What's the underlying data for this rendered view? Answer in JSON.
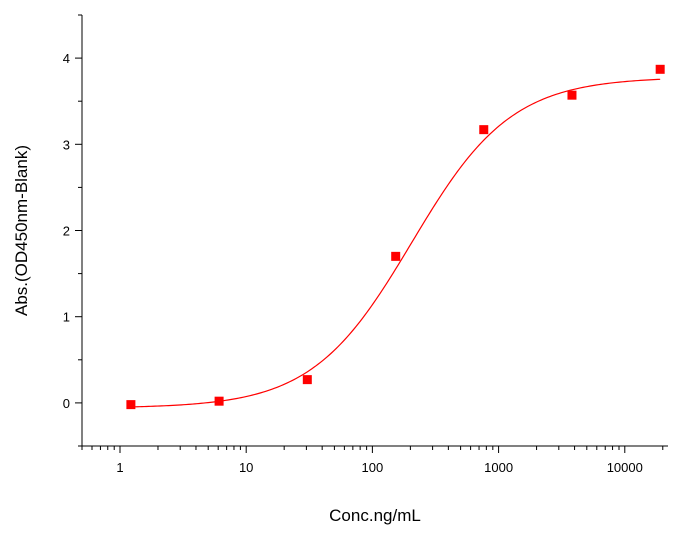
{
  "chart_data": {
    "type": "scatter",
    "title": "",
    "xlabel": "Conc.ng/mL",
    "ylabel": "Abs.(OD450nm-Blank)",
    "x_scale": "log",
    "xlim": [
      0.5,
      22000
    ],
    "ylim": [
      -0.5,
      4.5
    ],
    "x_ticks": [
      1,
      10,
      100,
      1000,
      10000
    ],
    "x_tick_labels": [
      "1",
      "10",
      "100",
      "1000",
      "10000"
    ],
    "y_ticks": [
      0,
      1,
      2,
      3,
      4
    ],
    "y_tick_labels": [
      "0",
      "1",
      "2",
      "3",
      "4"
    ],
    "grid": false,
    "legend": "none",
    "series": [
      {
        "kind": "points",
        "marker": "square",
        "color": "#ff0000",
        "x": [
          1.22,
          6.1,
          30.5,
          153,
          763,
          3815,
          19073
        ],
        "y": [
          -0.02,
          0.02,
          0.27,
          1.7,
          3.17,
          3.57,
          3.87
        ]
      },
      {
        "kind": "fit-curve",
        "color": "#ff0000",
        "model": "4PL",
        "bottom": -0.06,
        "top": 3.78,
        "ec50": 205,
        "hill": 1.1,
        "x_range": [
          1.22,
          19073
        ]
      }
    ]
  }
}
